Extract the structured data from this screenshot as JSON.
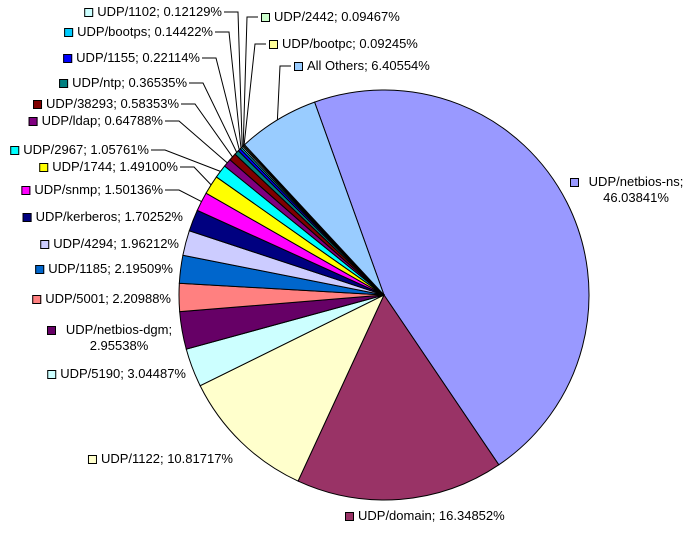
{
  "background": "#FFFFFF",
  "chart_data": {
    "type": "pie",
    "title": "",
    "unit": "percent",
    "legend_position": "callout-labels-around-pie",
    "direction": "clockwise",
    "start_angle_deg_from_12": -19.8,
    "outline_color": "#000000",
    "leader_line_color": "#000000",
    "text_color": "#000000",
    "slices": [
      {
        "label": "UDP/netbios-ns",
        "value": 46.03841,
        "display": "UDP/netbios-ns; 46.03841%",
        "color": "#9999FF"
      },
      {
        "label": "UDP/domain",
        "value": 16.34852,
        "display": "UDP/domain; 16.34852%",
        "color": "#993366"
      },
      {
        "label": "UDP/1122",
        "value": 10.81717,
        "display": "UDP/1122; 10.81717%",
        "color": "#FFFFCC"
      },
      {
        "label": "UDP/5190",
        "value": 3.04487,
        "display": "UDP/5190; 3.04487%",
        "color": "#CCFFFF"
      },
      {
        "label": "UDP/netbios-dgm",
        "value": 2.95538,
        "display": "UDP/netbios-dgm; 2.95538%",
        "color": "#660066"
      },
      {
        "label": "UDP/5001",
        "value": 2.20988,
        "display": "UDP/5001; 2.20988%",
        "color": "#FF8080"
      },
      {
        "label": "UDP/1185",
        "value": 2.19509,
        "display": "UDP/1185; 2.19509%",
        "color": "#0066CC"
      },
      {
        "label": "UDP/4294",
        "value": 1.96212,
        "display": "UDP/4294; 1.96212%",
        "color": "#CCCCFF"
      },
      {
        "label": "UDP/kerberos",
        "value": 1.70252,
        "display": "UDP/kerberos; 1.70252%",
        "color": "#000080"
      },
      {
        "label": "UDP/snmp",
        "value": 1.50136,
        "display": "UDP/snmp; 1.50136%",
        "color": "#FF00FF"
      },
      {
        "label": "UDP/1744",
        "value": 1.491,
        "display": "UDP/1744; 1.49100%",
        "color": "#FFFF00"
      },
      {
        "label": "UDP/2967",
        "value": 1.05761,
        "display": "UDP/2967; 1.05761%",
        "color": "#00FFFF"
      },
      {
        "label": "UDP/ldap",
        "value": 0.64788,
        "display": "UDP/ldap; 0.64788%",
        "color": "#800080"
      },
      {
        "label": "UDP/38293",
        "value": 0.58353,
        "display": "UDP/38293; 0.58353%",
        "color": "#800000"
      },
      {
        "label": "UDP/ntp",
        "value": 0.36535,
        "display": "UDP/ntp; 0.36535%",
        "color": "#008080"
      },
      {
        "label": "UDP/1155",
        "value": 0.22114,
        "display": "UDP/1155; 0.22114%",
        "color": "#0000FF"
      },
      {
        "label": "UDP/bootps",
        "value": 0.14422,
        "display": "UDP/bootps; 0.14422%",
        "color": "#00CCFF"
      },
      {
        "label": "UDP/1102",
        "value": 0.12129,
        "display": "UDP/1102; 0.12129%",
        "color": "#CCFFFF"
      },
      {
        "label": "UDP/2442",
        "value": 0.09467,
        "display": "UDP/2442; 0.09467%",
        "color": "#CCFFCC"
      },
      {
        "label": "UDP/bootpc",
        "value": 0.09245,
        "display": "UDP/bootpc; 0.09245%",
        "color": "#FFFF99"
      },
      {
        "label": "All Others",
        "value": 6.40554,
        "display": "All Others; 6.40554%",
        "color": "#99CCFF"
      }
    ]
  }
}
